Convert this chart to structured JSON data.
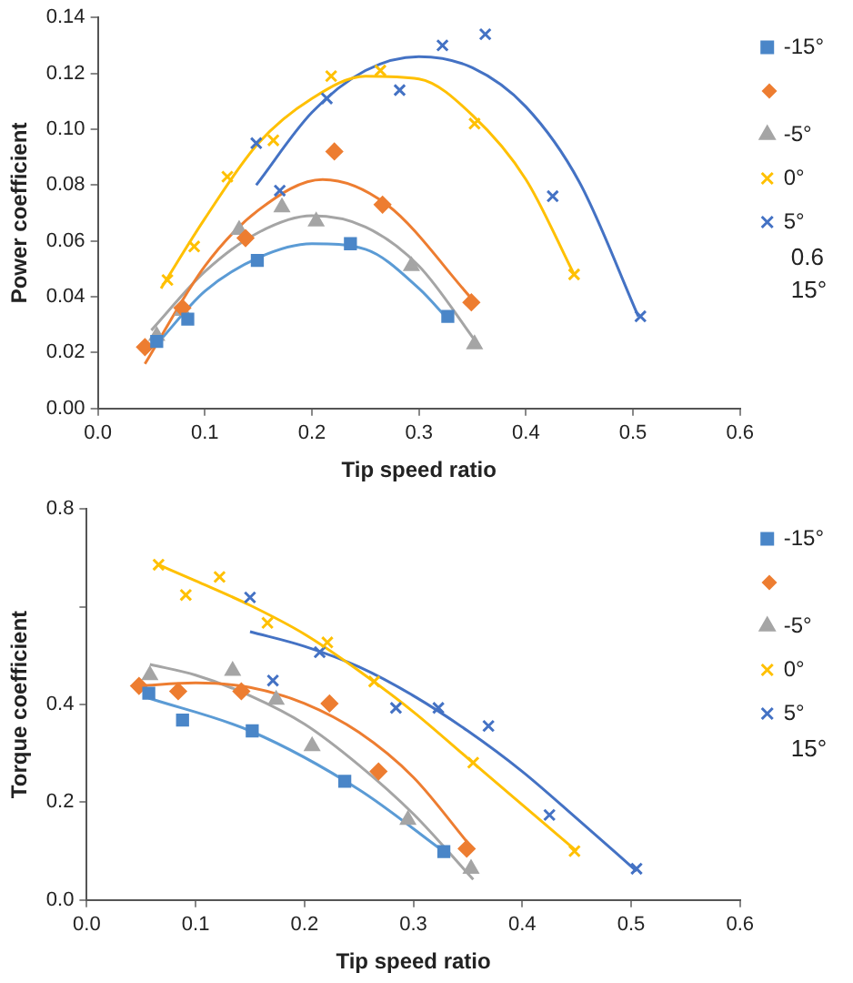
{
  "chart_data": [
    {
      "type": "scatter",
      "xlabel": "Tip speed ratio",
      "ylabel": "Power coefficient",
      "xlim": [
        0,
        0.6
      ],
      "ylim": [
        0,
        0.14
      ],
      "xticks": [
        {
          "value": 0,
          "label": "0.0"
        },
        {
          "value": 0.1,
          "label": "0.1"
        },
        {
          "value": 0.2,
          "label": "0.2"
        },
        {
          "value": 0.3,
          "label": "0.3"
        },
        {
          "value": 0.4,
          "label": "0.4"
        },
        {
          "value": 0.5,
          "label": "0.5"
        },
        {
          "value": 0.6,
          "label": "0.6"
        }
      ],
      "yticks": [
        {
          "value": 0,
          "label": "0.00"
        },
        {
          "value": 0.02,
          "label": "0.02"
        },
        {
          "value": 0.04,
          "label": "0.04"
        },
        {
          "value": 0.06,
          "label": "0.06"
        },
        {
          "value": 0.08,
          "label": "0.08"
        },
        {
          "value": 0.1,
          "label": "0.10"
        },
        {
          "value": 0.12,
          "label": "0.12"
        },
        {
          "value": 0.14,
          "label": "0.14"
        }
      ],
      "grid": false,
      "legend": "right",
      "annotations": [
        "0.6",
        "15°"
      ],
      "series": [
        {
          "type": "scatter",
          "name": "-15°",
          "color": "#4a86c8",
          "marker": "square",
          "x": [
            0.055,
            0.084,
            0.149,
            0.236,
            0.327
          ],
          "values": [
            0.024,
            0.032,
            0.053,
            0.059,
            0.033
          ]
        },
        {
          "type": "scatter",
          "color": "#ed7d31",
          "marker": "diamond",
          "x": [
            0.044,
            0.079,
            0.138,
            0.221,
            0.266,
            0.349
          ],
          "values": [
            0.022,
            0.036,
            0.061,
            0.092,
            0.073,
            0.038
          ]
        },
        {
          "type": "scatter",
          "name": "-5°",
          "color": "#a5a5a5",
          "marker": "triangle",
          "x": [
            0.055,
            0.079,
            0.132,
            0.172,
            0.204,
            0.293,
            0.352
          ],
          "values": [
            0.026,
            0.035,
            0.064,
            0.072,
            0.067,
            0.051,
            0.023
          ]
        },
        {
          "type": "scatter",
          "name": "0°",
          "color": "#ffc000",
          "marker": "cross",
          "x": [
            0.065,
            0.09,
            0.121,
            0.164,
            0.218,
            0.264,
            0.352,
            0.445
          ],
          "values": [
            0.046,
            0.058,
            0.083,
            0.096,
            0.119,
            0.121,
            0.102,
            0.048
          ]
        },
        {
          "type": "scatter",
          "name": "5°",
          "color": "#4472c4",
          "marker": "cross",
          "x": [
            0.148,
            0.17,
            0.214,
            0.282,
            0.322,
            0.362,
            0.425,
            0.507
          ],
          "values": [
            0.095,
            0.078,
            0.111,
            0.114,
            0.13,
            0.134,
            0.076,
            0.033
          ]
        },
        {
          "type": "line",
          "color": "#5b9bd5",
          "marker": "none",
          "x": [
            0.055,
            0.1,
            0.15,
            0.2,
            0.25,
            0.3,
            0.327
          ],
          "values": [
            0.023,
            0.042,
            0.054,
            0.059,
            0.057,
            0.043,
            0.032
          ]
        },
        {
          "type": "line",
          "color": "#ed7d31",
          "marker": "none",
          "x": [
            0.044,
            0.1,
            0.15,
            0.21,
            0.27,
            0.35
          ],
          "values": [
            0.016,
            0.051,
            0.071,
            0.082,
            0.073,
            0.039
          ]
        },
        {
          "type": "line",
          "color": "#a5a5a5",
          "marker": "none",
          "x": [
            0.05,
            0.1,
            0.15,
            0.2,
            0.25,
            0.3,
            0.355
          ],
          "values": [
            0.028,
            0.049,
            0.063,
            0.069,
            0.065,
            0.051,
            0.023
          ]
        },
        {
          "type": "line",
          "color": "#ffc000",
          "marker": "none",
          "x": [
            0.059,
            0.1,
            0.15,
            0.2,
            0.25,
            0.3,
            0.35,
            0.4,
            0.445
          ],
          "values": [
            0.043,
            0.068,
            0.095,
            0.111,
            0.119,
            0.118,
            0.105,
            0.082,
            0.048
          ]
        },
        {
          "type": "line",
          "color": "#4472c4",
          "marker": "none",
          "x": [
            0.148,
            0.2,
            0.25,
            0.3,
            0.35,
            0.4,
            0.45,
            0.505
          ],
          "values": [
            0.08,
            0.106,
            0.121,
            0.126,
            0.122,
            0.108,
            0.081,
            0.033
          ]
        }
      ]
    },
    {
      "type": "scatter",
      "xlabel": "Tip speed ratio",
      "ylabel": "Torque coefficient",
      "xlim": [
        0,
        0.6
      ],
      "ylim": [
        0,
        0.8
      ],
      "xticks": [
        {
          "value": 0,
          "label": "0.0"
        },
        {
          "value": 0.1,
          "label": "0.1"
        },
        {
          "value": 0.2,
          "label": "0.2"
        },
        {
          "value": 0.3,
          "label": "0.3"
        },
        {
          "value": 0.4,
          "label": "0.4"
        },
        {
          "value": 0.5,
          "label": "0.5"
        },
        {
          "value": 0.6,
          "label": "0.6"
        }
      ],
      "yticks": [
        {
          "value": 0,
          "label": "0.0"
        },
        {
          "value": 0.2,
          "label": "0.2"
        },
        {
          "value": 0.4,
          "label": "0.4"
        },
        {
          "value": 0.6,
          "label": null
        },
        {
          "value": 0.8,
          "label": "0.8"
        }
      ],
      "grid": false,
      "legend": "right",
      "annotations": [
        "15°"
      ],
      "series": [
        {
          "type": "scatter",
          "name": "-15°",
          "color": "#4a86c8",
          "marker": "square",
          "x": [
            0.057,
            0.088,
            0.152,
            0.237,
            0.328
          ],
          "values": [
            0.423,
            0.368,
            0.346,
            0.243,
            0.099
          ]
        },
        {
          "type": "scatter",
          "color": "#ed7d31",
          "marker": "diamond",
          "x": [
            0.048,
            0.084,
            0.142,
            0.223,
            0.268,
            0.349
          ],
          "values": [
            0.438,
            0.427,
            0.427,
            0.402,
            0.263,
            0.105
          ]
        },
        {
          "type": "scatter",
          "name": "-5°",
          "color": "#a5a5a5",
          "marker": "triangle",
          "x": [
            0.058,
            0.134,
            0.174,
            0.207,
            0.295,
            0.353
          ],
          "values": [
            0.46,
            0.469,
            0.41,
            0.315,
            0.164,
            0.064
          ]
        },
        {
          "type": "scatter",
          "name": "0°",
          "color": "#ffc000",
          "marker": "cross",
          "x": [
            0.066,
            0.091,
            0.122,
            0.166,
            0.221,
            0.264,
            0.355,
            0.448
          ],
          "values": [
            0.686,
            0.624,
            0.661,
            0.567,
            0.527,
            0.447,
            0.281,
            0.1
          ]
        },
        {
          "type": "scatter",
          "name": "5°",
          "color": "#4472c4",
          "marker": "cross",
          "x": [
            0.15,
            0.171,
            0.214,
            0.284,
            0.323,
            0.369,
            0.425,
            0.505
          ],
          "values": [
            0.619,
            0.449,
            0.507,
            0.393,
            0.393,
            0.356,
            0.174,
            0.064
          ]
        },
        {
          "type": "line",
          "color": "#5b9bd5",
          "marker": "none",
          "x": [
            0.057,
            0.15,
            0.25,
            0.328
          ],
          "values": [
            0.413,
            0.346,
            0.226,
            0.099
          ]
        },
        {
          "type": "line",
          "color": "#ed7d31",
          "marker": "none",
          "x": [
            0.048,
            0.1,
            0.15,
            0.2,
            0.25,
            0.3,
            0.35
          ],
          "values": [
            0.438,
            0.444,
            0.435,
            0.402,
            0.343,
            0.251,
            0.117
          ]
        },
        {
          "type": "line",
          "color": "#a5a5a5",
          "marker": "none",
          "x": [
            0.058,
            0.1,
            0.15,
            0.2,
            0.25,
            0.3,
            0.355
          ],
          "values": [
            0.482,
            0.46,
            0.418,
            0.36,
            0.276,
            0.176,
            0.042
          ]
        },
        {
          "type": "line",
          "color": "#ffc000",
          "marker": "none",
          "x": [
            0.066,
            0.1,
            0.15,
            0.2,
            0.25,
            0.3,
            0.35,
            0.45
          ],
          "values": [
            0.686,
            0.653,
            0.603,
            0.544,
            0.469,
            0.385,
            0.29,
            0.1
          ]
        },
        {
          "type": "line",
          "color": "#4472c4",
          "marker": "none",
          "x": [
            0.15,
            0.2,
            0.25,
            0.3,
            0.35,
            0.4,
            0.45,
            0.505
          ],
          "values": [
            0.549,
            0.519,
            0.477,
            0.418,
            0.346,
            0.263,
            0.167,
            0.059
          ]
        }
      ]
    }
  ]
}
